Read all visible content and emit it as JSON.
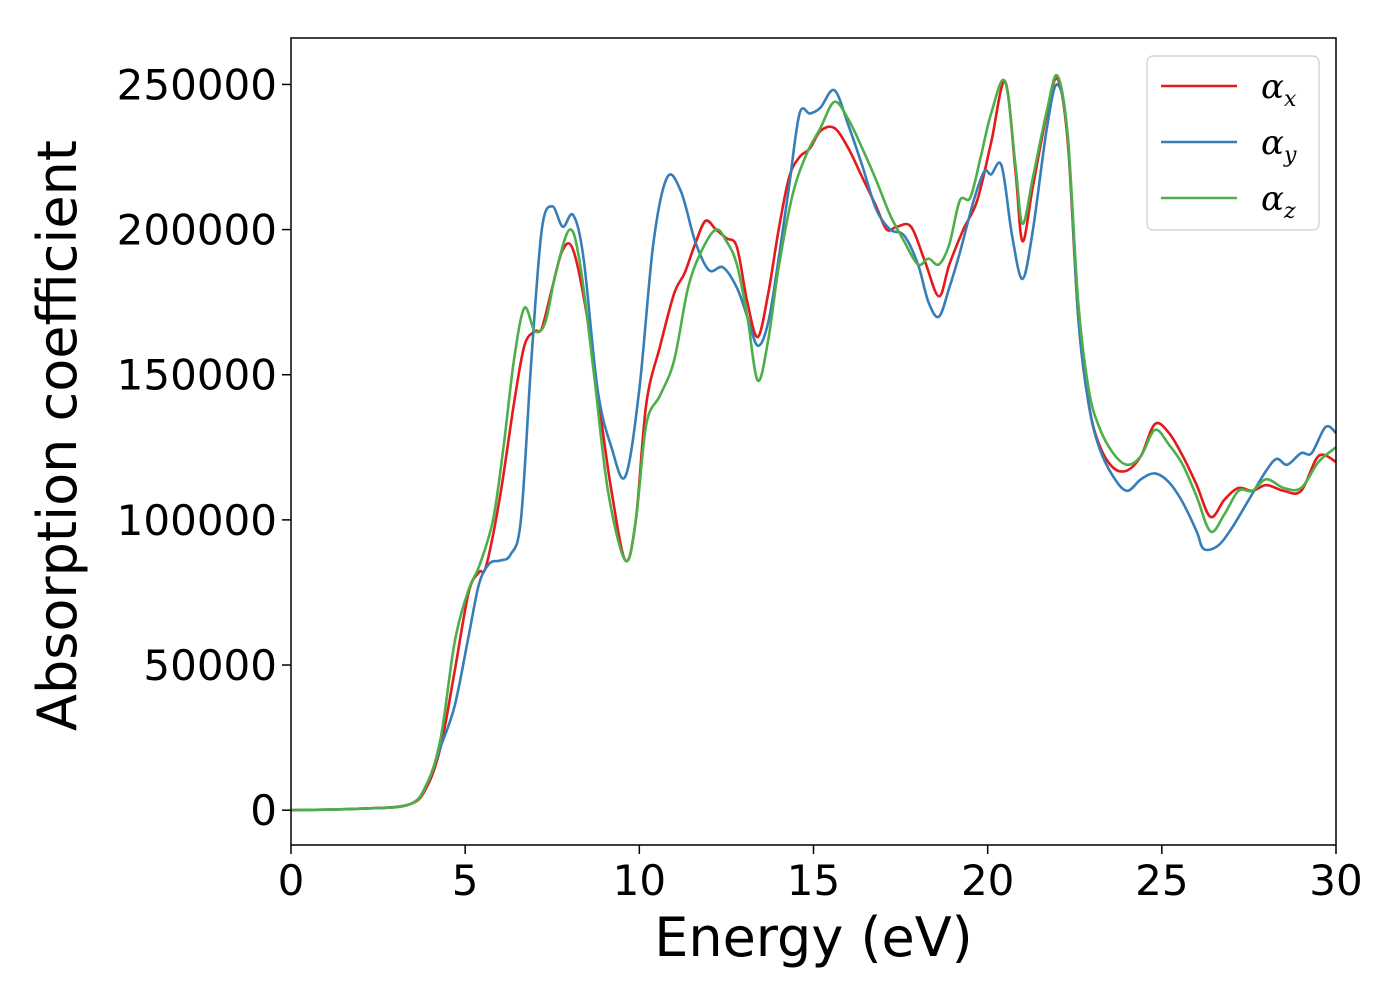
{
  "chart_data": {
    "type": "line",
    "title": "",
    "xlabel": "Energy (eV)",
    "ylabel": "Absorption coefficient",
    "xlim": [
      0,
      30
    ],
    "ylim": [
      -12000,
      266000
    ],
    "xticks": [
      0,
      5,
      10,
      15,
      20,
      25,
      30
    ],
    "xtick_labels": [
      "0",
      "5",
      "10",
      "15",
      "20",
      "25",
      "30"
    ],
    "yticks": [
      0,
      50000,
      100000,
      150000,
      200000,
      250000
    ],
    "ytick_labels": [
      "0",
      "50000",
      "100000",
      "150000",
      "200000",
      "250000"
    ],
    "grid": false,
    "legend": {
      "placement": "top-right",
      "entries": [
        {
          "symbol": "α",
          "subscript": "x",
          "color": "#e41a1c"
        },
        {
          "symbol": "α",
          "subscript": "y",
          "color": "#377eb8"
        },
        {
          "symbol": "α",
          "subscript": "z",
          "color": "#4daf4a"
        }
      ]
    },
    "series": [
      {
        "color": "#e41a1c",
        "points": [
          [
            0,
            0
          ],
          [
            2,
            500
          ],
          [
            3.4,
            2000
          ],
          [
            3.9,
            8000
          ],
          [
            4.3,
            22000
          ],
          [
            4.7,
            48000
          ],
          [
            5.1,
            75000
          ],
          [
            5.4,
            82000
          ],
          [
            5.6,
            84000
          ],
          [
            6,
            108000
          ],
          [
            6.4,
            140000
          ],
          [
            6.7,
            160000
          ],
          [
            7,
            165000
          ],
          [
            7.2,
            166000
          ],
          [
            7.5,
            180000
          ],
          [
            7.8,
            193000
          ],
          [
            8.1,
            193000
          ],
          [
            8.5,
            170000
          ],
          [
            8.9,
            135000
          ],
          [
            9.2,
            110000
          ],
          [
            9.6,
            86000
          ],
          [
            9.9,
            100000
          ],
          [
            10.2,
            140000
          ],
          [
            10.6,
            160000
          ],
          [
            11,
            178000
          ],
          [
            11.3,
            185000
          ],
          [
            11.6,
            195000
          ],
          [
            11.9,
            203000
          ],
          [
            12.2,
            200000
          ],
          [
            12.5,
            197000
          ],
          [
            12.8,
            194000
          ],
          [
            13.1,
            175000
          ],
          [
            13.4,
            163000
          ],
          [
            13.7,
            178000
          ],
          [
            14,
            200000
          ],
          [
            14.3,
            218000
          ],
          [
            14.6,
            225000
          ],
          [
            14.9,
            228000
          ],
          [
            15.2,
            234000
          ],
          [
            15.6,
            235000
          ],
          [
            16,
            228000
          ],
          [
            16.4,
            218000
          ],
          [
            16.8,
            208000
          ],
          [
            17.1,
            200000
          ],
          [
            17.4,
            201000
          ],
          [
            17.8,
            201000
          ],
          [
            18.2,
            189000
          ],
          [
            18.6,
            177000
          ],
          [
            18.9,
            188000
          ],
          [
            19.3,
            200000
          ],
          [
            19.7,
            210000
          ],
          [
            20.1,
            230000
          ],
          [
            20.5,
            251000
          ],
          [
            20.8,
            220000
          ],
          [
            21,
            196000
          ],
          [
            21.3,
            215000
          ],
          [
            21.7,
            240000
          ],
          [
            22,
            252000
          ],
          [
            22.3,
            230000
          ],
          [
            22.6,
            170000
          ],
          [
            22.9,
            140000
          ],
          [
            23.2,
            126000
          ],
          [
            23.6,
            118000
          ],
          [
            24,
            117000
          ],
          [
            24.4,
            122000
          ],
          [
            24.8,
            133000
          ],
          [
            25.2,
            130000
          ],
          [
            25.6,
            122000
          ],
          [
            26,
            112000
          ],
          [
            26.4,
            101000
          ],
          [
            26.8,
            107000
          ],
          [
            27.2,
            111000
          ],
          [
            27.6,
            110000
          ],
          [
            28,
            112000
          ],
          [
            28.5,
            110000
          ],
          [
            29,
            110000
          ],
          [
            29.5,
            122000
          ],
          [
            30,
            120000
          ]
        ]
      },
      {
        "color": "#377eb8",
        "points": [
          [
            0,
            0
          ],
          [
            2,
            500
          ],
          [
            3.4,
            2000
          ],
          [
            3.9,
            9000
          ],
          [
            4.3,
            22000
          ],
          [
            4.7,
            36000
          ],
          [
            5.1,
            60000
          ],
          [
            5.4,
            78000
          ],
          [
            5.7,
            85000
          ],
          [
            6,
            86000
          ],
          [
            6.3,
            88000
          ],
          [
            6.6,
            100000
          ],
          [
            6.9,
            155000
          ],
          [
            7.2,
            200000
          ],
          [
            7.5,
            208000
          ],
          [
            7.8,
            201000
          ],
          [
            8.1,
            205000
          ],
          [
            8.4,
            190000
          ],
          [
            8.8,
            145000
          ],
          [
            9.2,
            125000
          ],
          [
            9.6,
            115000
          ],
          [
            10,
            145000
          ],
          [
            10.4,
            195000
          ],
          [
            10.8,
            218000
          ],
          [
            11.2,
            213000
          ],
          [
            11.6,
            196000
          ],
          [
            12,
            186000
          ],
          [
            12.4,
            187000
          ],
          [
            12.8,
            180000
          ],
          [
            13.1,
            170000
          ],
          [
            13.4,
            160000
          ],
          [
            13.7,
            168000
          ],
          [
            14,
            190000
          ],
          [
            14.3,
            215000
          ],
          [
            14.6,
            240000
          ],
          [
            14.9,
            240000
          ],
          [
            15.2,
            242000
          ],
          [
            15.6,
            248000
          ],
          [
            16,
            236000
          ],
          [
            16.4,
            222000
          ],
          [
            16.8,
            207000
          ],
          [
            17.2,
            200000
          ],
          [
            17.6,
            198000
          ],
          [
            18,
            188000
          ],
          [
            18.3,
            175000
          ],
          [
            18.6,
            170000
          ],
          [
            18.9,
            180000
          ],
          [
            19.2,
            192000
          ],
          [
            19.6,
            210000
          ],
          [
            19.9,
            220000
          ],
          [
            20.1,
            219000
          ],
          [
            20.4,
            222000
          ],
          [
            20.7,
            198000
          ],
          [
            21,
            183000
          ],
          [
            21.3,
            200000
          ],
          [
            21.7,
            235000
          ],
          [
            22,
            250000
          ],
          [
            22.3,
            232000
          ],
          [
            22.6,
            170000
          ],
          [
            22.9,
            140000
          ],
          [
            23.2,
            125000
          ],
          [
            23.6,
            115000
          ],
          [
            24,
            110000
          ],
          [
            24.4,
            114000
          ],
          [
            24.8,
            116000
          ],
          [
            25.2,
            113000
          ],
          [
            25.6,
            106000
          ],
          [
            26,
            96000
          ],
          [
            26.2,
            90000
          ],
          [
            26.6,
            91000
          ],
          [
            27,
            97000
          ],
          [
            27.5,
            107000
          ],
          [
            28,
            117000
          ],
          [
            28.3,
            121000
          ],
          [
            28.6,
            119000
          ],
          [
            29,
            123000
          ],
          [
            29.3,
            123000
          ],
          [
            29.7,
            132000
          ],
          [
            30,
            130000
          ]
        ]
      },
      {
        "color": "#4daf4a",
        "points": [
          [
            0,
            0
          ],
          [
            2,
            500
          ],
          [
            3.4,
            2000
          ],
          [
            3.9,
            9000
          ],
          [
            4.3,
            25000
          ],
          [
            4.7,
            58000
          ],
          [
            5.1,
            76000
          ],
          [
            5.4,
            84000
          ],
          [
            5.8,
            100000
          ],
          [
            6.1,
            125000
          ],
          [
            6.4,
            155000
          ],
          [
            6.7,
            173000
          ],
          [
            7,
            165000
          ],
          [
            7.3,
            168000
          ],
          [
            7.6,
            185000
          ],
          [
            8,
            200000
          ],
          [
            8.3,
            188000
          ],
          [
            8.7,
            150000
          ],
          [
            9.1,
            110000
          ],
          [
            9.6,
            86000
          ],
          [
            9.9,
            100000
          ],
          [
            10.2,
            133000
          ],
          [
            10.6,
            143000
          ],
          [
            11,
            155000
          ],
          [
            11.4,
            180000
          ],
          [
            11.8,
            193000
          ],
          [
            12.2,
            200000
          ],
          [
            12.5,
            196000
          ],
          [
            12.8,
            188000
          ],
          [
            13.1,
            170000
          ],
          [
            13.4,
            148000
          ],
          [
            13.7,
            162000
          ],
          [
            14,
            187000
          ],
          [
            14.4,
            212000
          ],
          [
            14.8,
            226000
          ],
          [
            15.2,
            235000
          ],
          [
            15.6,
            244000
          ],
          [
            16,
            238000
          ],
          [
            16.4,
            228000
          ],
          [
            16.8,
            217000
          ],
          [
            17.2,
            205000
          ],
          [
            17.6,
            196000
          ],
          [
            18,
            188000
          ],
          [
            18.3,
            190000
          ],
          [
            18.6,
            188000
          ],
          [
            18.9,
            195000
          ],
          [
            19.2,
            210000
          ],
          [
            19.5,
            211000
          ],
          [
            19.8,
            225000
          ],
          [
            20.1,
            240000
          ],
          [
            20.5,
            251000
          ],
          [
            20.8,
            222000
          ],
          [
            21,
            202000
          ],
          [
            21.3,
            218000
          ],
          [
            21.7,
            241000
          ],
          [
            22,
            253000
          ],
          [
            22.3,
            232000
          ],
          [
            22.6,
            175000
          ],
          [
            22.9,
            145000
          ],
          [
            23.2,
            132000
          ],
          [
            23.6,
            123000
          ],
          [
            24,
            119000
          ],
          [
            24.4,
            122000
          ],
          [
            24.8,
            131000
          ],
          [
            25.2,
            126000
          ],
          [
            25.6,
            119000
          ],
          [
            26,
            108000
          ],
          [
            26.4,
            96000
          ],
          [
            26.8,
            102000
          ],
          [
            27.2,
            110000
          ],
          [
            27.6,
            110000
          ],
          [
            28,
            114000
          ],
          [
            28.5,
            111000
          ],
          [
            29,
            111000
          ],
          [
            29.5,
            120000
          ],
          [
            30,
            125000
          ]
        ]
      }
    ]
  }
}
